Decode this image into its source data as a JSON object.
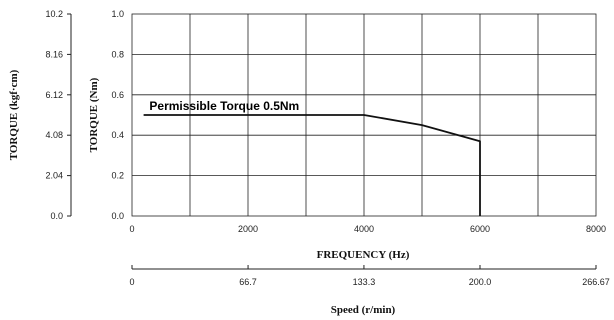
{
  "chart_data": {
    "type": "line",
    "x_axis": {
      "label": "FREQUENCY (Hz)",
      "range": [
        0,
        8000
      ],
      "ticks": [
        "0",
        "2000",
        "4000",
        "6000",
        "8000"
      ],
      "tick_values": [
        0,
        2000,
        4000,
        6000,
        8000
      ],
      "grid_step": 1000
    },
    "y_axis": {
      "label": "TORQUE (Nm)",
      "range": [
        0,
        1.0
      ],
      "ticks": [
        "0.0",
        "0.2",
        "0.4",
        "0.6",
        "0.8",
        "1.0"
      ],
      "tick_values": [
        0,
        0.2,
        0.4,
        0.6,
        0.8,
        1.0
      ]
    },
    "secondary_y_axis": {
      "label": "TORQUE (kgf·cm)",
      "range": [
        0,
        10.2
      ],
      "ticks": [
        "0.0",
        "2.04",
        "4.08",
        "6.12",
        "8.16",
        "10.2"
      ],
      "tick_values": [
        0,
        2.04,
        4.08,
        6.12,
        8.16,
        10.2
      ]
    },
    "secondary_x_axis": {
      "label": "Speed (r/min)",
      "range": [
        0,
        266.67
      ],
      "ticks": [
        "0",
        "66.7",
        "133.3",
        "200.0",
        "266.67"
      ],
      "tick_values": [
        0,
        66.7,
        133.3,
        200.0,
        266.67
      ]
    },
    "series": [
      {
        "x": [
          200,
          4000,
          5000,
          6000,
          6000
        ],
        "y": [
          0.5,
          0.5,
          0.45,
          0.37,
          0.0
        ]
      }
    ],
    "annotations": [
      {
        "text": "Permissible Torque 0.5Nm",
        "x": 300,
        "y": 0.5
      }
    ],
    "grid": true
  }
}
